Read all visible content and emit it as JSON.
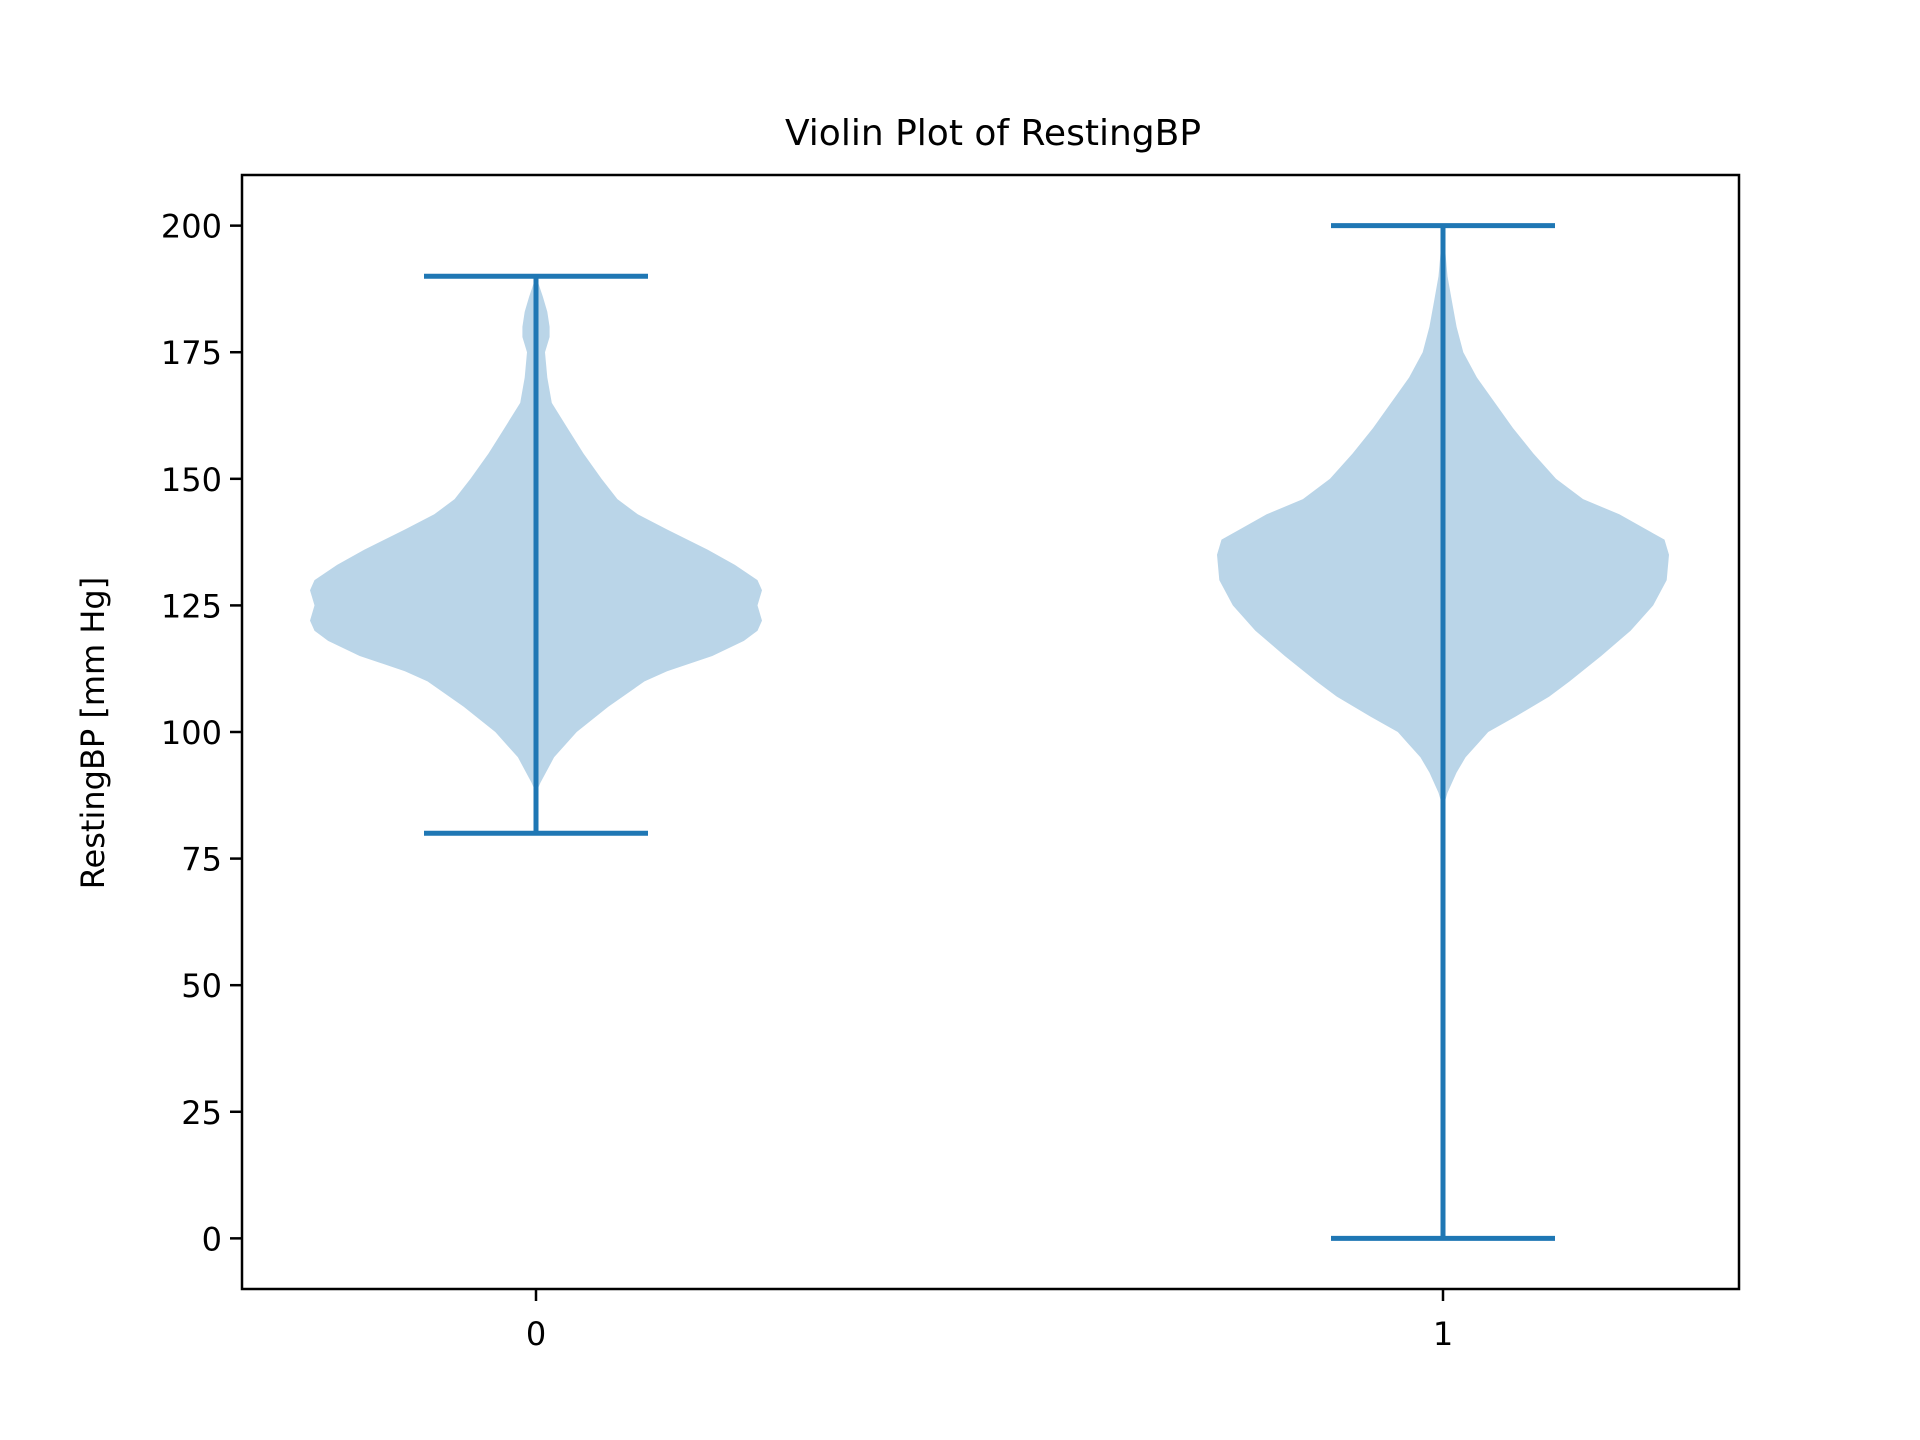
{
  "chart_data": {
    "type": "violin",
    "title": "Violin Plot of RestingBP",
    "xlabel": "",
    "ylabel": "RestingBP [mm Hg]",
    "categories": [
      "0",
      "1"
    ],
    "ylim": [
      -10,
      210
    ],
    "yticks": [
      0,
      25,
      50,
      75,
      100,
      125,
      150,
      175,
      200
    ],
    "grid": false,
    "colors": {
      "body": "#bad5e8",
      "lines": "#1f77b4",
      "axes": "#000000"
    },
    "series": [
      {
        "name": "0",
        "min": 80,
        "max": 190,
        "density": [
          [
            88,
            0.0
          ],
          [
            90,
            0.02
          ],
          [
            95,
            0.08
          ],
          [
            100,
            0.18
          ],
          [
            105,
            0.32
          ],
          [
            110,
            0.48
          ],
          [
            112,
            0.58
          ],
          [
            115,
            0.78
          ],
          [
            118,
            0.92
          ],
          [
            120,
            0.98
          ],
          [
            122,
            1.0
          ],
          [
            125,
            0.98
          ],
          [
            128,
            1.0
          ],
          [
            130,
            0.98
          ],
          [
            133,
            0.88
          ],
          [
            136,
            0.76
          ],
          [
            140,
            0.58
          ],
          [
            143,
            0.45
          ],
          [
            146,
            0.36
          ],
          [
            150,
            0.29
          ],
          [
            155,
            0.21
          ],
          [
            160,
            0.14
          ],
          [
            165,
            0.07
          ],
          [
            170,
            0.05
          ],
          [
            175,
            0.04
          ],
          [
            178,
            0.06
          ],
          [
            180,
            0.06
          ],
          [
            183,
            0.05
          ],
          [
            186,
            0.03
          ],
          [
            188,
            0.015
          ],
          [
            190,
            0.0
          ]
        ]
      },
      {
        "name": "1",
        "min": 0,
        "max": 200,
        "density": [
          [
            85,
            0.0
          ],
          [
            88,
            0.02
          ],
          [
            92,
            0.06
          ],
          [
            95,
            0.1
          ],
          [
            98,
            0.16
          ],
          [
            100,
            0.2
          ],
          [
            103,
            0.32
          ],
          [
            107,
            0.47
          ],
          [
            110,
            0.56
          ],
          [
            115,
            0.7
          ],
          [
            120,
            0.83
          ],
          [
            125,
            0.93
          ],
          [
            130,
            0.99
          ],
          [
            135,
            1.0
          ],
          [
            138,
            0.98
          ],
          [
            140,
            0.9
          ],
          [
            143,
            0.78
          ],
          [
            146,
            0.62
          ],
          [
            150,
            0.5
          ],
          [
            155,
            0.4
          ],
          [
            160,
            0.31
          ],
          [
            165,
            0.23
          ],
          [
            170,
            0.15
          ],
          [
            175,
            0.09
          ],
          [
            180,
            0.06
          ],
          [
            185,
            0.04
          ],
          [
            190,
            0.02
          ],
          [
            195,
            0.01
          ],
          [
            200,
            0.0
          ]
        ]
      }
    ]
  }
}
